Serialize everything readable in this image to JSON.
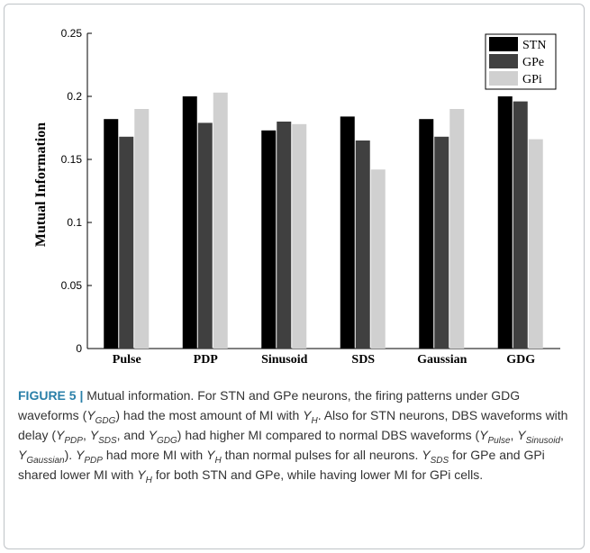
{
  "chart_data": {
    "type": "bar",
    "categories": [
      "Pulse",
      "PDP",
      "Sinusoid",
      "SDS",
      "Gaussian",
      "GDG"
    ],
    "series": [
      {
        "name": "STN",
        "color": "#000000",
        "values": [
          0.182,
          0.2,
          0.173,
          0.184,
          0.182,
          0.2
        ]
      },
      {
        "name": "GPe",
        "color": "#404040",
        "values": [
          0.168,
          0.179,
          0.18,
          0.165,
          0.168,
          0.196
        ]
      },
      {
        "name": "GPi",
        "color": "#d0d0d0",
        "values": [
          0.19,
          0.203,
          0.178,
          0.142,
          0.19,
          0.166
        ]
      }
    ],
    "ylabel": "Mutual Information",
    "xlabel": "",
    "ylim": [
      0,
      0.25
    ],
    "yticks": [
      "0",
      "0.05",
      "0.1",
      "0.15",
      "0.2",
      "0.25"
    ],
    "legend_position": "top-right",
    "grid": false
  },
  "caption": {
    "label": "FIGURE 5 |",
    "text": "Mutual information. For STN and GPe neurons, the firing patterns under GDG waveforms (Y_GDG) had the most amount of MI with Y_H. Also for STN neurons, DBS waveforms with delay (Y_PDP, Y_SDS, and Y_GDG) had higher MI compared to normal DBS waveforms (Y_Pulse, Y_Sinusoid, Y_Gaussian). Y_PDP had more MI with Y_H than normal pulses for all neurons. Y_SDS for GPe and GPi shared lower MI with Y_H for both STN and GPe, while having lower MI for GPi cells."
  }
}
